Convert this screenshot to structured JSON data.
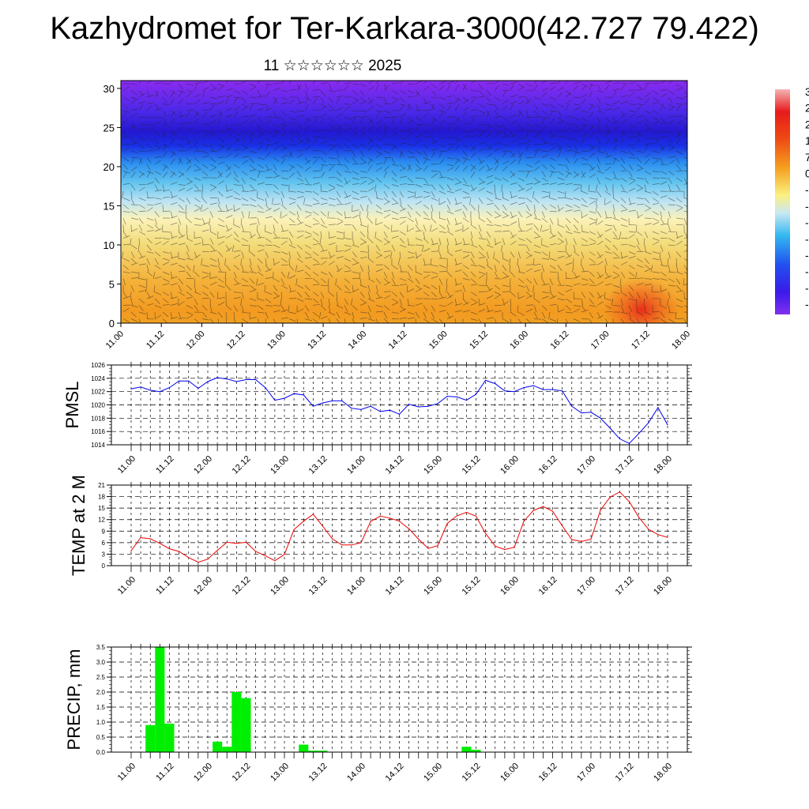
{
  "title": "Kazhydromet for Ter-Karkara-3000(42.727 79.422)",
  "subtitle": "11 ☆☆☆☆☆☆ 2025",
  "chart_data": [
    {
      "type": "heatmap",
      "ylim": [
        0,
        31
      ],
      "yticks": [
        0,
        5,
        10,
        15,
        20,
        25,
        30
      ],
      "xticks": [
        "11.00",
        "11.12",
        "12.00",
        "12.12",
        "13.00",
        "13.12",
        "14.00",
        "14.12",
        "15.00",
        "15.12",
        "16.00",
        "16.12",
        "17.00",
        "17.12",
        "18.00"
      ],
      "colorbar_labels": [
        "3",
        "2",
        "2",
        "1",
        "7",
        "0",
        "-",
        "-",
        "-",
        "-",
        "-",
        "-",
        "-",
        "-"
      ]
    },
    {
      "type": "line",
      "ylabel": "PMSL",
      "ylim": [
        1014,
        1026
      ],
      "yticks": [
        1014,
        1016,
        1018,
        1020,
        1022,
        1024,
        1026
      ],
      "xticks": [
        "11.00",
        "11.12",
        "12.00",
        "12.12",
        "13.00",
        "13.12",
        "14.00",
        "14.12",
        "15.00",
        "15.12",
        "16.00",
        "16.12",
        "17.00",
        "17.12",
        "18.00"
      ],
      "series": [
        {
          "color": "#0000ee",
          "values": [
            1022.4,
            1022.7,
            1022.2,
            1022.0,
            1022.6,
            1023.6,
            1023.6,
            1022.5,
            1023.5,
            1024.1,
            1023.9,
            1023.5,
            1023.8,
            1023.8,
            1022.6,
            1020.7,
            1021.0,
            1021.7,
            1021.5,
            1019.8,
            1020.3,
            1020.6,
            1020.6,
            1019.5,
            1019.3,
            1019.8,
            1019.0,
            1019.2,
            1018.6,
            1020.1,
            1019.7,
            1019.8,
            1020.2,
            1021.3,
            1021.2,
            1020.7,
            1021.6,
            1023.7,
            1023.2,
            1022.1,
            1022.0,
            1022.6,
            1022.9,
            1022.3,
            1022.3,
            1022.1,
            1019.8,
            1018.8,
            1018.9,
            1018.0,
            1016.5,
            1014.9,
            1014.2,
            1015.7,
            1017.3,
            1019.6,
            1017.0
          ]
        }
      ]
    },
    {
      "type": "line",
      "ylabel": "TEMP at 2 M",
      "ylim": [
        0,
        21
      ],
      "yticks": [
        0,
        3,
        6,
        9,
        12,
        15,
        18,
        21
      ],
      "xticks": [
        "11.00",
        "11.12",
        "12.00",
        "12.12",
        "13.00",
        "13.12",
        "14.00",
        "14.12",
        "15.00",
        "15.12",
        "16.00",
        "16.12",
        "17.00",
        "17.12",
        "18.00"
      ],
      "series": [
        {
          "color": "#ee0000",
          "values": [
            3.9,
            7.3,
            7.0,
            5.8,
            4.4,
            3.7,
            2.1,
            0.9,
            1.7,
            4.0,
            6.1,
            5.8,
            6.1,
            3.7,
            2.6,
            1.3,
            2.9,
            9.4,
            11.6,
            13.4,
            10.3,
            7.0,
            5.4,
            5.4,
            6.0,
            11.5,
            12.9,
            12.4,
            11.6,
            9.6,
            6.9,
            4.5,
            5.2,
            11.0,
            13.0,
            13.9,
            12.9,
            8.4,
            5.1,
            4.2,
            4.8,
            11.6,
            14.4,
            15.4,
            14.2,
            10.4,
            6.8,
            6.3,
            6.9,
            14.5,
            17.9,
            19.2,
            16.7,
            12.6,
            9.5,
            8.1,
            7.4
          ]
        }
      ]
    },
    {
      "type": "bar",
      "ylabel": "PRECIP, mm",
      "ylim": [
        0,
        3.5
      ],
      "yticks": [
        "0.0",
        "0.5",
        "1.0",
        "1.5",
        "2.0",
        "2.5",
        "3.0",
        "3.5"
      ],
      "xticks": [
        "11.00",
        "11.12",
        "12.00",
        "12.12",
        "13.00",
        "13.12",
        "14.00",
        "14.12",
        "15.00",
        "15.12",
        "16.00",
        "16.12",
        "17.00",
        "17.12",
        "18.00"
      ],
      "series": [
        {
          "color": "#00ee00",
          "values": [
            0,
            0,
            0.9,
            3.5,
            0.95,
            0,
            0,
            0,
            0,
            0.35,
            0.18,
            2.0,
            1.8,
            0,
            0,
            0,
            0,
            0,
            0.25,
            0.05,
            0.05,
            0,
            0,
            0,
            0,
            0,
            0,
            0,
            0,
            0,
            0,
            0,
            0,
            0,
            0,
            0.18,
            0.08,
            0,
            0,
            0,
            0,
            0,
            0,
            0,
            0,
            0,
            0,
            0,
            0,
            0,
            0,
            0,
            0,
            0,
            0,
            0,
            0
          ]
        }
      ]
    }
  ]
}
